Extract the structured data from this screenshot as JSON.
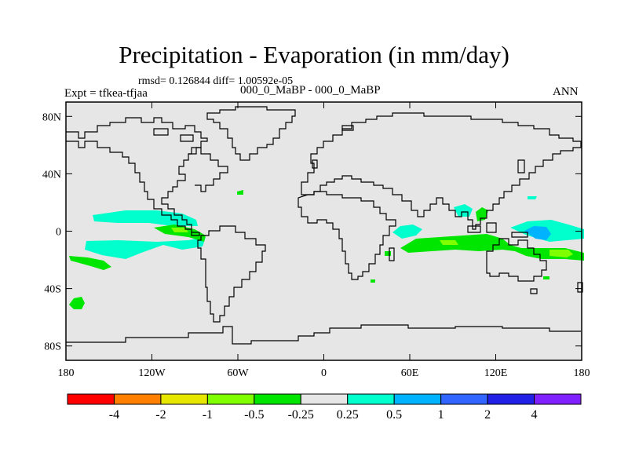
{
  "title": "Precipitation - Evaporation (in mm/day)",
  "stats": "rmsd= 0.126844 diff= 1.00592e-05",
  "expt": "Expt = tfkea-tfjaa",
  "subtitle": "000_0_MaBP - 000_0_MaBP",
  "season": "ANN",
  "map": {
    "projection": "cylindrical-equidistant",
    "lon_range": [
      -180,
      180
    ],
    "lat_range": [
      -90,
      90
    ],
    "background_color": "#e6e6e6",
    "x_ticks": [
      {
        "lon": -180,
        "label": "180"
      },
      {
        "lon": -120,
        "label": "120W"
      },
      {
        "lon": -60,
        "label": "60W"
      },
      {
        "lon": 0,
        "label": "0"
      },
      {
        "lon": 60,
        "label": "60E"
      },
      {
        "lon": 120,
        "label": "120E"
      },
      {
        "lon": 180,
        "label": "180"
      }
    ],
    "y_ticks": [
      {
        "lat": 80,
        "label": "80N"
      },
      {
        "lat": 40,
        "label": "40N"
      },
      {
        "lat": 0,
        "label": "0"
      },
      {
        "lat": -40,
        "label": "40S"
      },
      {
        "lat": -80,
        "label": "80S"
      }
    ]
  },
  "colorbar": {
    "colors": [
      "#ff0000",
      "#ff8000",
      "#e6e600",
      "#80ff00",
      "#00e600",
      "#e6e6e6",
      "#00ffcc",
      "#00b3ff",
      "#3264ff",
      "#2020e6",
      "#8020ff"
    ],
    "labels": [
      "-4",
      "-2",
      "-1",
      "-0.5",
      "-0.25",
      "0.25",
      "0.5",
      "1",
      "2",
      "4"
    ]
  }
}
